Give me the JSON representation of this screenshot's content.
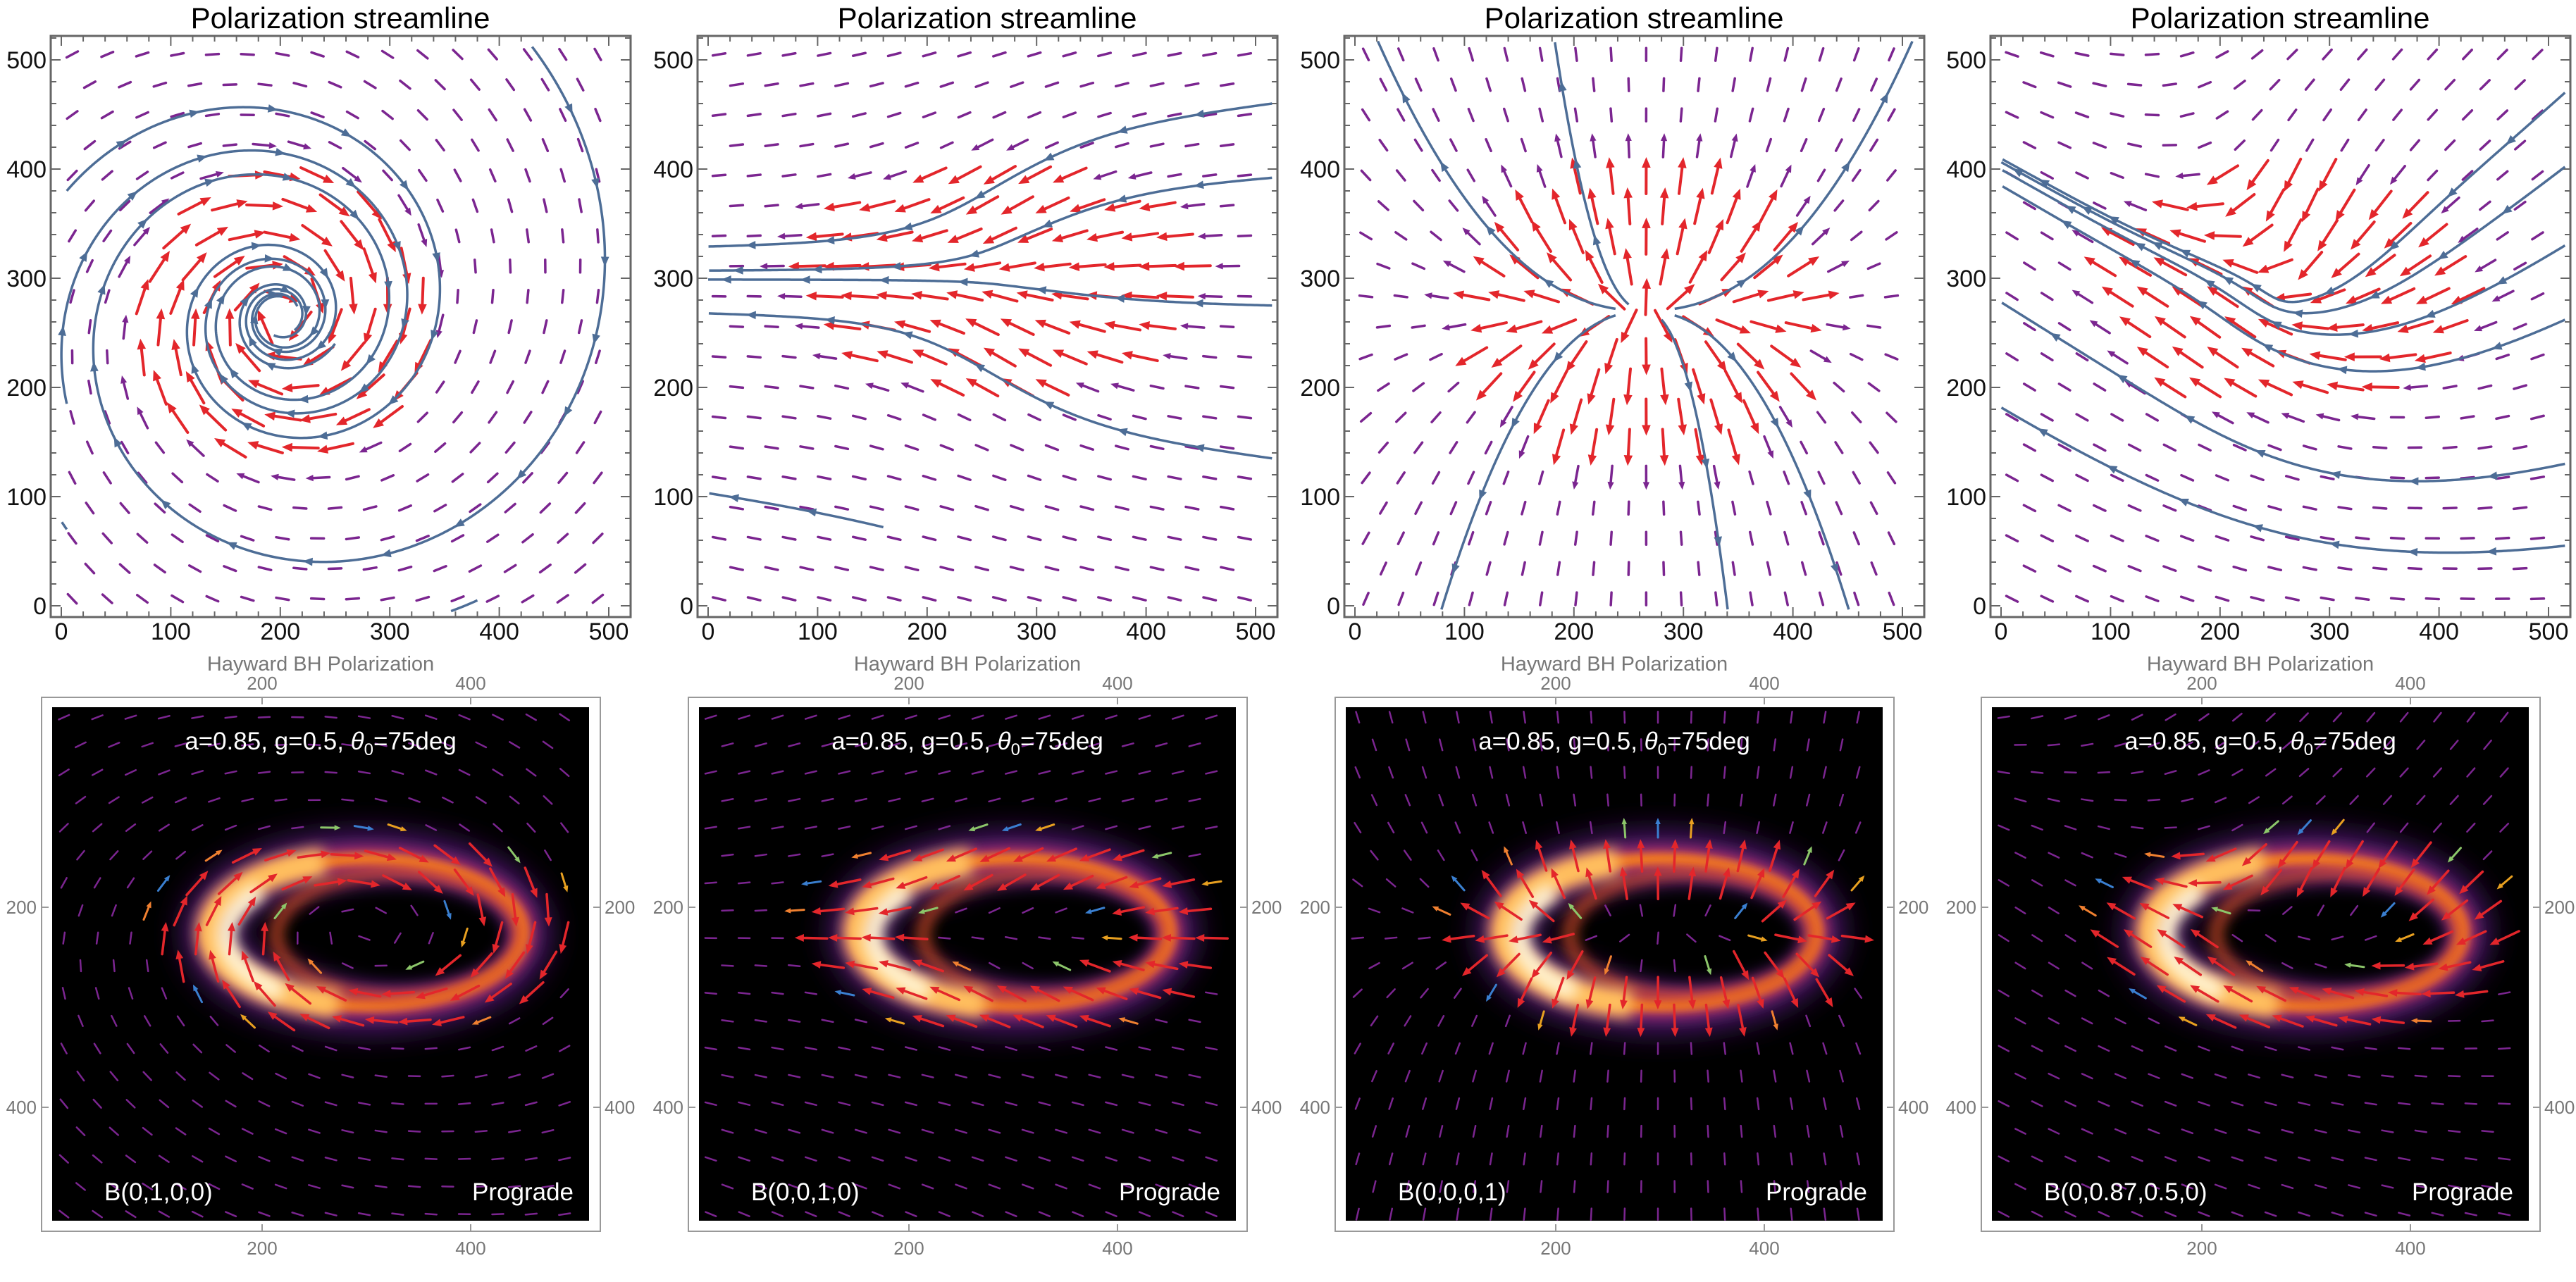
{
  "colors": {
    "arrow_strong": "#e3262b",
    "arrow_weak": "#7b2590",
    "streamline": "#4d6d96",
    "accents": [
      "#f08030",
      "#8cc66a",
      "#3a7fd0",
      "#e8a020"
    ],
    "frame": "#666666",
    "tick_gray": "#777777",
    "image_bg": "#000000"
  },
  "chart_data": [
    {
      "type": "vector-field",
      "title": "Polarization streamline",
      "xlim": [
        0,
        520
      ],
      "ylim": [
        -10,
        520
      ],
      "xticks": [
        0,
        100,
        200,
        300,
        400,
        500
      ],
      "yticks": [
        0,
        100,
        200,
        300,
        400,
        500
      ],
      "field": "B(0,1,0,0)",
      "pattern": "clockwise spiral",
      "center": [
        200,
        265
      ]
    },
    {
      "type": "vector-field",
      "title": "Polarization streamline",
      "xlim": [
        0,
        520
      ],
      "ylim": [
        -10,
        520
      ],
      "xticks": [
        0,
        100,
        200,
        300,
        400,
        500
      ],
      "yticks": [
        0,
        100,
        200,
        300,
        400,
        500
      ],
      "field": "B(0,0,1,0)",
      "pattern": "horizontal converging",
      "center": [
        265,
        300
      ]
    },
    {
      "type": "vector-field",
      "title": "Polarization streamline",
      "xlim": [
        0,
        520
      ],
      "ylim": [
        -10,
        520
      ],
      "xticks": [
        0,
        100,
        200,
        300,
        400,
        500
      ],
      "yticks": [
        0,
        100,
        200,
        300,
        400,
        500
      ],
      "field": "B(0,0,0,1)",
      "pattern": "radial outward",
      "center": [
        265,
        270
      ]
    },
    {
      "type": "vector-field",
      "title": "Polarization streamline",
      "xlim": [
        0,
        520
      ],
      "ylim": [
        -10,
        520
      ],
      "xticks": [
        0,
        100,
        200,
        300,
        400,
        500
      ],
      "yticks": [
        0,
        100,
        200,
        300,
        400,
        500
      ],
      "field": "B(0,0.87,0.5,0)",
      "pattern": "mixed",
      "center": [
        260,
        290
      ]
    }
  ],
  "bottom_panels": [
    {
      "xlabel": "Hayward BH Polarization",
      "ticks": [
        "200",
        "400"
      ],
      "params_prefix": "a=0.85, g=0.5, ",
      "theta": "θ",
      "theta_sub": "0",
      "params_suffix": "=75deg",
      "field_label": "B(0,1,0,0)",
      "orbit": "Prograde"
    },
    {
      "xlabel": "Hayward BH Polarization",
      "ticks": [
        "200",
        "400"
      ],
      "params_prefix": "a=0.85, g=0.5, ",
      "theta": "θ",
      "theta_sub": "0",
      "params_suffix": "=75deg",
      "field_label": "B(0,0,1,0)",
      "orbit": "Prograde"
    },
    {
      "xlabel": "Hayward BH Polarization",
      "ticks": [
        "200",
        "400"
      ],
      "params_prefix": "a=0.85, g=0.5, ",
      "theta": "θ",
      "theta_sub": "0",
      "params_suffix": "=75deg",
      "field_label": "B(0,0,0,1)",
      "orbit": "Prograde"
    },
    {
      "xlabel": "Hayward BH Polarization",
      "ticks": [
        "200",
        "400"
      ],
      "params_prefix": "a=0.85, g=0.5, ",
      "theta": "θ",
      "theta_sub": "0",
      "params_suffix": "=75deg",
      "field_label": "B(0,0.87,0.5,0)",
      "orbit": "Prograde"
    }
  ]
}
